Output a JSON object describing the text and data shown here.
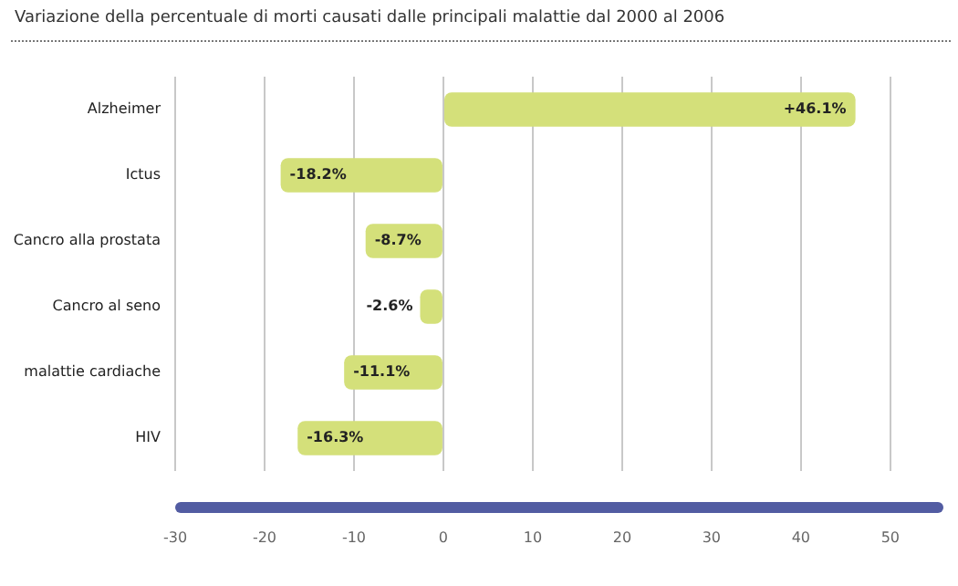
{
  "chart_data": {
    "type": "bar",
    "orientation": "horizontal",
    "title": "Variazione della percentuale di morti causati dalle principali malattie dal 2000 al 2006",
    "categories": [
      "Alzheimer",
      "Ictus",
      "Cancro alla prostata",
      "Cancro al seno",
      "malattie cardiache",
      "HIV"
    ],
    "values": [
      46.1,
      -18.2,
      -8.7,
      -2.6,
      -11.1,
      -16.3
    ],
    "value_labels": [
      "+46.1%",
      "-18.2%",
      "-8.7%",
      "-2.6%",
      "-11.1%",
      "-16.3%"
    ],
    "color": "#d4e07a",
    "xlim": [
      -30,
      50
    ],
    "xticks": [
      -30,
      -20,
      -10,
      0,
      10,
      20,
      30,
      40,
      50
    ],
    "grid": "x"
  }
}
